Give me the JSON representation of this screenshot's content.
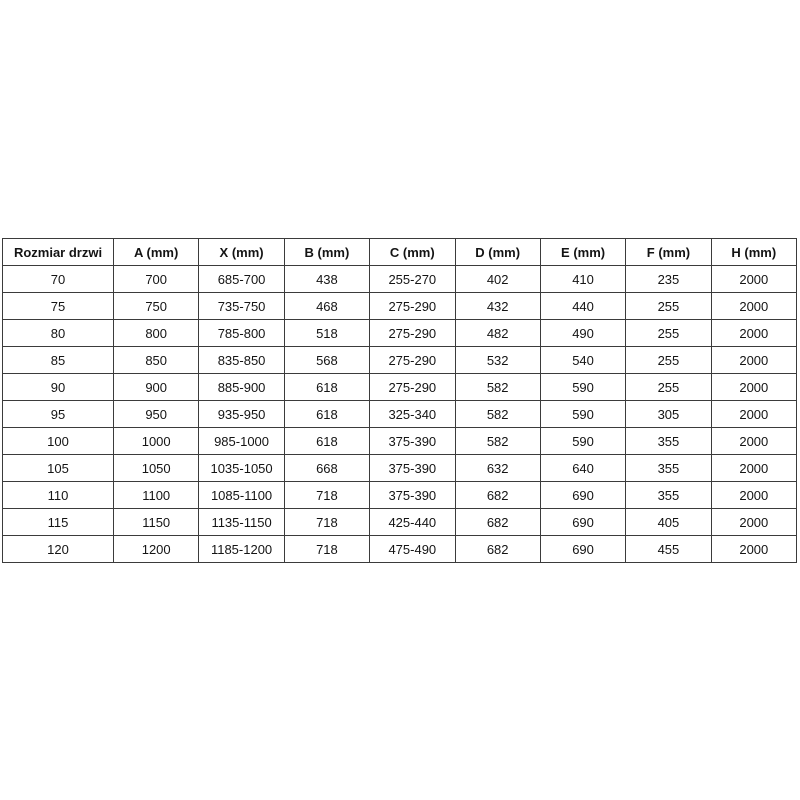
{
  "chart_data": {
    "type": "table",
    "title": "",
    "columns": [
      "Rozmiar drzwi",
      "A (mm)",
      "X (mm)",
      "B (mm)",
      "C (mm)",
      "D (mm)",
      "E (mm)",
      "F (mm)",
      "H (mm)"
    ],
    "rows": [
      [
        "70",
        "700",
        "685-700",
        "438",
        "255-270",
        "402",
        "410",
        "235",
        "2000"
      ],
      [
        "75",
        "750",
        "735-750",
        "468",
        "275-290",
        "432",
        "440",
        "255",
        "2000"
      ],
      [
        "80",
        "800",
        "785-800",
        "518",
        "275-290",
        "482",
        "490",
        "255",
        "2000"
      ],
      [
        "85",
        "850",
        "835-850",
        "568",
        "275-290",
        "532",
        "540",
        "255",
        "2000"
      ],
      [
        "90",
        "900",
        "885-900",
        "618",
        "275-290",
        "582",
        "590",
        "255",
        "2000"
      ],
      [
        "95",
        "950",
        "935-950",
        "618",
        "325-340",
        "582",
        "590",
        "305",
        "2000"
      ],
      [
        "100",
        "1000",
        "985-1000",
        "618",
        "375-390",
        "582",
        "590",
        "355",
        "2000"
      ],
      [
        "105",
        "1050",
        "1035-1050",
        "668",
        "375-390",
        "632",
        "640",
        "355",
        "2000"
      ],
      [
        "110",
        "1100",
        "1085-1100",
        "718",
        "375-390",
        "682",
        "690",
        "355",
        "2000"
      ],
      [
        "115",
        "1150",
        "1135-1150",
        "718",
        "425-440",
        "682",
        "690",
        "405",
        "2000"
      ],
      [
        "120",
        "1200",
        "1185-1200",
        "718",
        "475-490",
        "682",
        "690",
        "455",
        "2000"
      ]
    ]
  },
  "colors": {
    "background": "#ffffff",
    "border": "#3b3b3b",
    "text": "#141414"
  }
}
